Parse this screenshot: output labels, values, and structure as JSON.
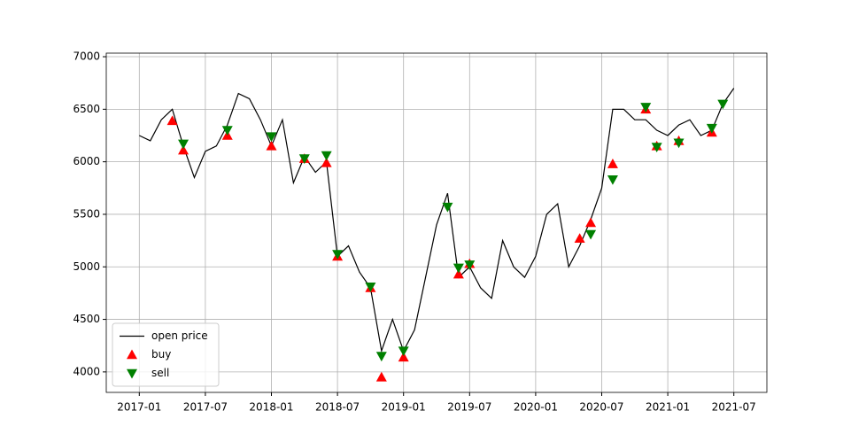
{
  "chart_data": {
    "type": "line",
    "xlim": [
      "2016-10",
      "2021-10"
    ],
    "ylim": [
      3805,
      7034
    ],
    "xticks": [
      "2017-01",
      "2017-07",
      "2018-01",
      "2018-07",
      "2019-01",
      "2019-07",
      "2020-01",
      "2020-07",
      "2021-01",
      "2021-07"
    ],
    "yticks": [
      4000,
      4500,
      5000,
      5500,
      6000,
      6500,
      7000
    ],
    "grid": true,
    "legend": "lower left",
    "series": [
      {
        "name": "open price",
        "color": "black",
        "marker": "none",
        "x": [
          "2017-01",
          "2017-02",
          "2017-03",
          "2017-04",
          "2017-05",
          "2017-06",
          "2017-07",
          "2017-08",
          "2017-09",
          "2017-10",
          "2017-11",
          "2017-12",
          "2018-01",
          "2018-02",
          "2018-03",
          "2018-04",
          "2018-05",
          "2018-06",
          "2018-07",
          "2018-08",
          "2018-09",
          "2018-10",
          "2018-11",
          "2018-12",
          "2019-01",
          "2019-02",
          "2019-03",
          "2019-04",
          "2019-05",
          "2019-06",
          "2019-07",
          "2019-08",
          "2019-09",
          "2019-10",
          "2019-11",
          "2019-12",
          "2020-01",
          "2020-02",
          "2020-03",
          "2020-04",
          "2020-05",
          "2020-06",
          "2020-07",
          "2020-08",
          "2020-09",
          "2020-10",
          "2020-11",
          "2020-12",
          "2021-01",
          "2021-02",
          "2021-03",
          "2021-04",
          "2021-05",
          "2021-06",
          "2021-07"
        ],
        "values": [
          6250,
          6200,
          6400,
          6500,
          6150,
          5850,
          6100,
          6150,
          6350,
          6650,
          6600,
          6400,
          6150,
          6400,
          5800,
          6050,
          5900,
          6000,
          5100,
          5200,
          4950,
          4800,
          4200,
          4500,
          4200,
          4400,
          4900,
          5400,
          5700,
          4900,
          5000,
          4800,
          4700,
          5250,
          5000,
          4900,
          5100,
          5500,
          5600,
          5000,
          5200,
          5450,
          5750,
          6500,
          6500,
          6400,
          6400,
          6300,
          6250,
          6350,
          6400,
          6250,
          6300,
          6550,
          6700
        ]
      },
      {
        "name": "buy",
        "color": "red",
        "marker": "up",
        "x": [
          "2017-04",
          "2017-05",
          "2017-09",
          "2018-01",
          "2018-04",
          "2018-06",
          "2018-07",
          "2018-10",
          "2018-11",
          "2019-01",
          "2019-06",
          "2019-07",
          "2020-05",
          "2020-06",
          "2020-08",
          "2020-11",
          "2020-12",
          "2021-02",
          "2021-05"
        ],
        "values": [
          6390,
          6110,
          6250,
          6150,
          6030,
          5990,
          5100,
          4800,
          3950,
          4140,
          4930,
          5030,
          5270,
          5420,
          5980,
          6500,
          6150,
          6200,
          6280
        ]
      },
      {
        "name": "sell",
        "color": "green",
        "marker": "down",
        "x": [
          "2017-05",
          "2017-09",
          "2018-01",
          "2018-04",
          "2018-06",
          "2018-07",
          "2018-10",
          "2018-11",
          "2019-01",
          "2019-05",
          "2019-06",
          "2019-07",
          "2020-06",
          "2020-08",
          "2020-11",
          "2020-12",
          "2021-02",
          "2021-05",
          "2021-06"
        ],
        "values": [
          6170,
          6300,
          6240,
          6030,
          6060,
          5120,
          4810,
          4150,
          4200,
          5570,
          4990,
          5020,
          5310,
          5830,
          6520,
          6140,
          6180,
          6320,
          6550
        ]
      }
    ]
  }
}
